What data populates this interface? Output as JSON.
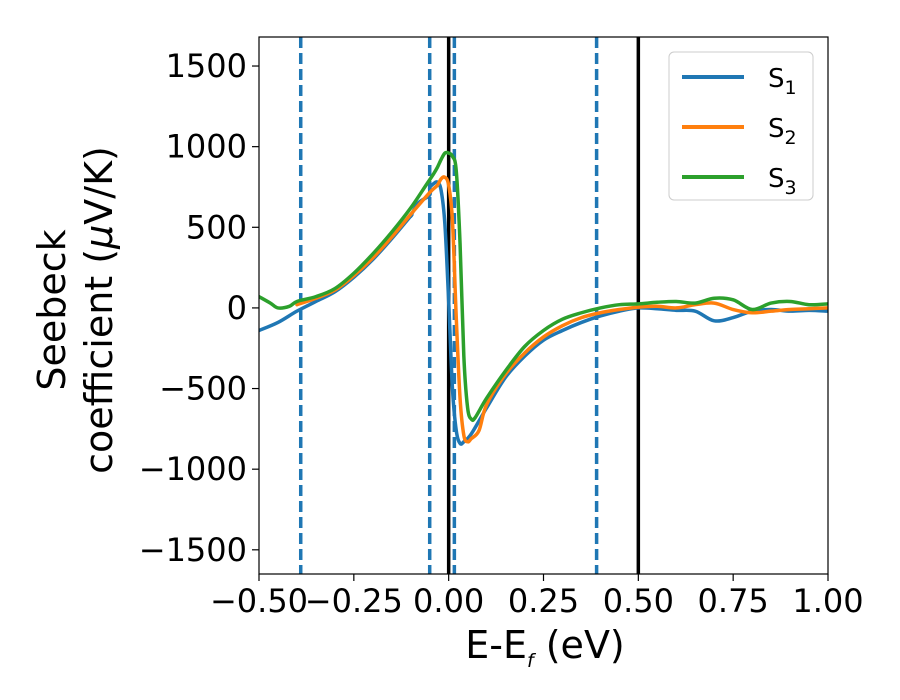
{
  "chart_data": {
    "type": "line",
    "title": "",
    "xlabel": "E-E",
    "xlabel_sub": "f",
    "xlabel_unit": " (eV)",
    "ylabel_line1": "Seebeck",
    "ylabel_line2_prefix": "coefficient  (",
    "ylabel_mu": "μ",
    "ylabel_line2_suffix": "V/K)",
    "xlim": [
      -0.5,
      1.0
    ],
    "ylim": [
      -1650,
      1680
    ],
    "xticks": [
      -0.5,
      -0.25,
      0.0,
      0.25,
      0.5,
      0.75,
      1.0
    ],
    "xtick_labels": [
      "−0.50",
      "−0.25",
      "0.00",
      "0.25",
      "0.50",
      "0.75",
      "1.00"
    ],
    "yticks": [
      -1500,
      -1000,
      -500,
      0,
      500,
      1000,
      1500
    ],
    "ytick_labels": [
      "−1500",
      "−1000",
      "−500",
      "0",
      "500",
      "1000",
      "1500"
    ],
    "grid": false,
    "legend_position": "top-right",
    "series": [
      {
        "name": "S",
        "subscript": "1",
        "color": "#1f77b4",
        "points": [
          [
            -0.5,
            -140
          ],
          [
            -0.45,
            -90
          ],
          [
            -0.4,
            -20
          ],
          [
            -0.35,
            40
          ],
          [
            -0.3,
            100
          ],
          [
            -0.25,
            190
          ],
          [
            -0.2,
            300
          ],
          [
            -0.15,
            430
          ],
          [
            -0.1,
            570
          ],
          [
            -0.05,
            700
          ],
          [
            -0.1,
            570
          ],
          [
            -0.08,
            650
          ],
          [
            -0.05,
            745
          ],
          [
            -0.04,
            770
          ],
          [
            -0.03,
            780
          ],
          [
            -0.02,
            730
          ],
          [
            -0.01,
            520
          ],
          [
            0.0,
            40
          ],
          [
            0.01,
            -500
          ],
          [
            0.02,
            -760
          ],
          [
            0.03,
            -840
          ],
          [
            0.04,
            -830
          ],
          [
            0.06,
            -780
          ],
          [
            0.1,
            -620
          ],
          [
            0.15,
            -430
          ],
          [
            0.2,
            -300
          ],
          [
            0.25,
            -200
          ],
          [
            0.3,
            -140
          ],
          [
            0.35,
            -90
          ],
          [
            0.4,
            -50
          ],
          [
            0.45,
            -20
          ],
          [
            0.5,
            0
          ],
          [
            0.55,
            -5
          ],
          [
            0.6,
            -15
          ],
          [
            0.65,
            -20
          ],
          [
            0.7,
            -80
          ],
          [
            0.75,
            -60
          ],
          [
            0.8,
            -20
          ],
          [
            0.85,
            -10
          ],
          [
            0.9,
            -20
          ],
          [
            0.95,
            -15
          ],
          [
            1.0,
            -20
          ]
        ]
      },
      {
        "name": "S",
        "subscript": "2",
        "color": "#ff7f0e",
        "points": [
          [
            -0.4,
            20
          ],
          [
            -0.35,
            60
          ],
          [
            -0.3,
            110
          ],
          [
            -0.25,
            200
          ],
          [
            -0.2,
            310
          ],
          [
            -0.15,
            440
          ],
          [
            -0.1,
            580
          ],
          [
            -0.05,
            715
          ],
          [
            -0.03,
            760
          ],
          [
            -0.02,
            800
          ],
          [
            -0.01,
            810
          ],
          [
            0.0,
            760
          ],
          [
            0.01,
            540
          ],
          [
            0.02,
            -60
          ],
          [
            0.03,
            -560
          ],
          [
            0.04,
            -790
          ],
          [
            0.05,
            -830
          ],
          [
            0.06,
            -810
          ],
          [
            0.08,
            -760
          ],
          [
            0.1,
            -600
          ],
          [
            0.15,
            -410
          ],
          [
            0.2,
            -280
          ],
          [
            0.25,
            -180
          ],
          [
            0.3,
            -110
          ],
          [
            0.35,
            -60
          ],
          [
            0.4,
            -30
          ],
          [
            0.45,
            -10
          ],
          [
            0.5,
            5
          ],
          [
            0.55,
            10
          ],
          [
            0.6,
            0
          ],
          [
            0.65,
            20
          ],
          [
            0.7,
            30
          ],
          [
            0.75,
            -10
          ],
          [
            0.8,
            -30
          ],
          [
            0.85,
            -20
          ],
          [
            0.9,
            -10
          ],
          [
            0.95,
            -5
          ],
          [
            1.0,
            0
          ]
        ]
      },
      {
        "name": "S",
        "subscript": "3",
        "color": "#2ca02c",
        "points": [
          [
            -0.5,
            70
          ],
          [
            -0.47,
            30
          ],
          [
            -0.45,
            0
          ],
          [
            -0.42,
            10
          ],
          [
            -0.4,
            40
          ],
          [
            -0.35,
            70
          ],
          [
            -0.3,
            120
          ],
          [
            -0.25,
            215
          ],
          [
            -0.2,
            335
          ],
          [
            -0.15,
            470
          ],
          [
            -0.1,
            620
          ],
          [
            -0.06,
            760
          ],
          [
            -0.04,
            830
          ],
          [
            -0.03,
            870
          ],
          [
            -0.02,
            920
          ],
          [
            -0.01,
            960
          ],
          [
            0.0,
            960
          ],
          [
            0.01,
            940
          ],
          [
            0.02,
            850
          ],
          [
            0.03,
            400
          ],
          [
            0.04,
            -300
          ],
          [
            0.05,
            -620
          ],
          [
            0.06,
            -690
          ],
          [
            0.07,
            -680
          ],
          [
            0.1,
            -560
          ],
          [
            0.15,
            -390
          ],
          [
            0.2,
            -240
          ],
          [
            0.25,
            -140
          ],
          [
            0.3,
            -70
          ],
          [
            0.35,
            -30
          ],
          [
            0.4,
            0
          ],
          [
            0.45,
            20
          ],
          [
            0.5,
            25
          ],
          [
            0.55,
            35
          ],
          [
            0.6,
            40
          ],
          [
            0.65,
            30
          ],
          [
            0.7,
            60
          ],
          [
            0.75,
            50
          ],
          [
            0.8,
            -10
          ],
          [
            0.85,
            30
          ],
          [
            0.9,
            40
          ],
          [
            0.95,
            20
          ],
          [
            1.0,
            25
          ]
        ]
      }
    ],
    "vlines": [
      {
        "x": -0.39,
        "style": "dashed",
        "color": "#1f77b4"
      },
      {
        "x": -0.05,
        "style": "dashed",
        "color": "#1f77b4"
      },
      {
        "x": 0.015,
        "style": "dashed",
        "color": "#1f77b4"
      },
      {
        "x": 0.39,
        "style": "dashed",
        "color": "#1f77b4"
      },
      {
        "x": 0.0,
        "style": "solid",
        "color": "#000000"
      },
      {
        "x": 0.5,
        "style": "solid",
        "color": "#000000"
      }
    ]
  }
}
